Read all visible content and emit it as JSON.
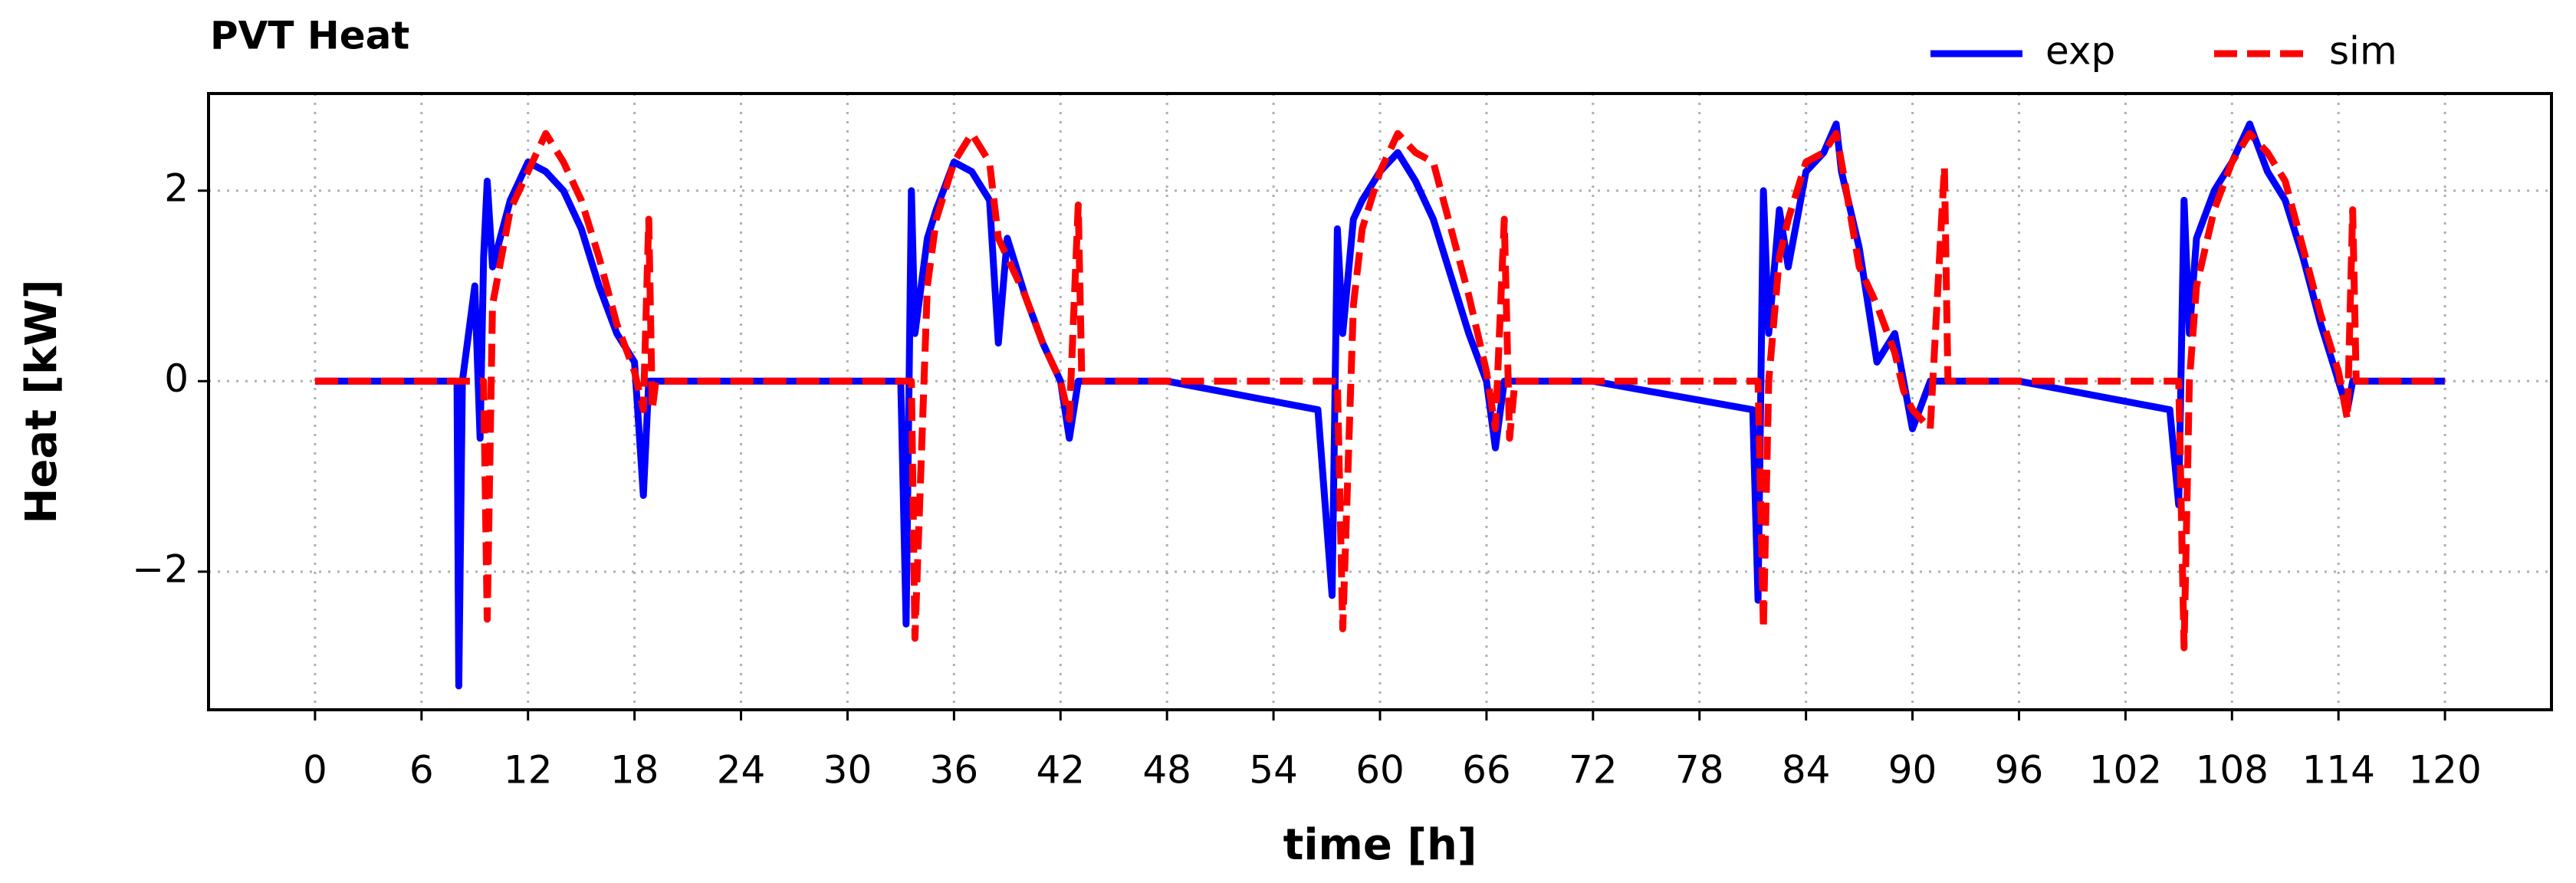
{
  "chart_data": {
    "type": "line",
    "title": "PVT Heat",
    "xlabel": "time [h]",
    "ylabel": "Heat [kW]",
    "x": [
      0,
      8,
      8.1,
      8.3,
      9,
      9.3,
      9.5,
      9.7,
      10,
      11,
      12,
      13,
      14,
      15,
      16,
      17,
      18,
      18.5,
      18.8,
      19,
      19.2,
      24,
      33,
      33.3,
      33.6,
      33.8,
      34.5,
      35,
      36,
      37,
      38,
      38.5,
      39,
      40,
      41,
      42,
      42.5,
      43,
      43.2,
      48,
      56.5,
      57.3,
      57.6,
      57.9,
      58.5,
      59,
      60,
      61,
      62,
      63,
      64,
      65,
      66,
      66.5,
      67,
      67.3,
      67.6,
      72,
      81.0,
      81.3,
      81.6,
      81.9,
      82.5,
      83,
      84,
      85,
      85.7,
      86,
      87,
      88,
      89,
      89.5,
      90,
      91,
      91.8,
      92,
      96,
      104.5,
      105,
      105.3,
      105.6,
      106,
      107,
      108,
      109,
      110,
      111,
      112,
      113,
      114,
      114.5,
      114.8,
      115,
      120
    ],
    "series": [
      {
        "name": "exp",
        "color": "#0000ff",
        "dashed": false,
        "values": [
          0,
          0,
          -3.2,
          0,
          1.0,
          -0.6,
          1.3,
          2.1,
          1.2,
          1.9,
          2.3,
          2.2,
          2.0,
          1.6,
          1.0,
          0.5,
          0.2,
          -1.2,
          0,
          0,
          0,
          0,
          0,
          -2.55,
          2.0,
          0.5,
          1.5,
          1.8,
          2.3,
          2.2,
          1.9,
          0.4,
          1.5,
          0.9,
          0.4,
          0,
          -0.6,
          0,
          0,
          0,
          -0.3,
          -2.25,
          1.6,
          0.5,
          1.7,
          1.9,
          2.2,
          2.4,
          2.1,
          1.7,
          1.1,
          0.5,
          0,
          -0.7,
          0,
          0,
          0,
          0,
          -0.3,
          -2.3,
          2.0,
          0.5,
          1.8,
          1.2,
          2.2,
          2.4,
          2.7,
          2.2,
          1.4,
          0.2,
          0.5,
          0,
          -0.5,
          0,
          0,
          0,
          0,
          -0.3,
          -1.3,
          1.9,
          0.5,
          1.5,
          2.0,
          2.3,
          2.7,
          2.2,
          1.9,
          1.3,
          0.6,
          0,
          -0.3,
          0,
          0,
          0
        ]
      },
      {
        "name": "sim",
        "color": "#ff0000",
        "dashed": true,
        "values": [
          0,
          0,
          0,
          0,
          0,
          0,
          0,
          -2.5,
          0.8,
          1.8,
          2.2,
          2.6,
          2.3,
          1.9,
          1.3,
          0.6,
          0.1,
          -0.3,
          1.7,
          -0.3,
          0,
          0,
          0,
          0,
          0,
          -2.7,
          1.0,
          1.7,
          2.3,
          2.6,
          2.3,
          1.5,
          1.3,
          0.9,
          0.4,
          0,
          -0.4,
          1.85,
          0,
          0,
          0,
          0,
          0,
          -2.6,
          0.8,
          1.6,
          2.2,
          2.6,
          2.4,
          2.3,
          1.6,
          0.9,
          0.1,
          -0.5,
          1.7,
          -0.6,
          0,
          0,
          0,
          0,
          -2.6,
          0,
          1.3,
          1.7,
          2.3,
          2.4,
          2.6,
          2.3,
          1.2,
          0.8,
          0.3,
          -0.1,
          -0.3,
          -0.5,
          2.25,
          0,
          0,
          0,
          0,
          -2.8,
          0,
          1.0,
          1.8,
          2.3,
          2.6,
          2.4,
          2.1,
          1.4,
          0.7,
          0.1,
          -0.4,
          1.8,
          0,
          0
        ]
      }
    ],
    "xlim": [
      -6,
      126
    ],
    "ylim": [
      -3.45,
      3.02
    ],
    "xticks": [
      0,
      6,
      12,
      18,
      24,
      30,
      36,
      42,
      48,
      54,
      60,
      66,
      72,
      78,
      84,
      90,
      96,
      102,
      108,
      114,
      120
    ],
    "yticks": [
      {
        "value": -2,
        "label": "−2"
      },
      0,
      2
    ],
    "grid": true,
    "legend": "upper right"
  }
}
